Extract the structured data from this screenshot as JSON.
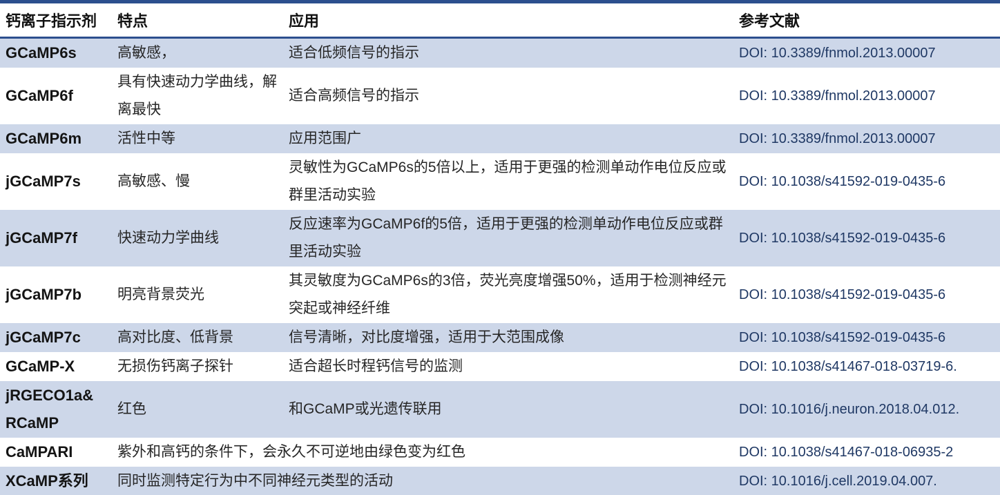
{
  "table": {
    "headers": [
      "钙离子指示剂",
      "特点",
      "应用",
      "参考文献"
    ],
    "rows": [
      {
        "indicator": "GCaMP6s",
        "features": "高敏感，",
        "application": "适合低频信号的指示",
        "reference": "DOI: 10.3389/fnmol.2013.00007",
        "shaded": true,
        "merged": false
      },
      {
        "indicator": "GCaMP6f",
        "features": "具有快速动力学曲线，解离最快",
        "application": "适合高频信号的指示",
        "reference": "DOI: 10.3389/fnmol.2013.00007",
        "shaded": false,
        "merged": false
      },
      {
        "indicator": "GCaMP6m",
        "features": "活性中等",
        "application": "应用范围广",
        "reference": "DOI: 10.3389/fnmol.2013.00007",
        "shaded": true,
        "merged": false
      },
      {
        "indicator": "jGCaMP7s",
        "features": "高敏感、慢",
        "application": "灵敏性为GCaMP6s的5倍以上，适用于更强的检测单动作电位反应或群里活动实验",
        "reference": "DOI: 10.1038/s41592-019-0435-6",
        "shaded": false,
        "merged": false
      },
      {
        "indicator": "jGCaMP7f",
        "features": "快速动力学曲线",
        "application": "反应速率为GCaMP6f的5倍，适用于更强的检测单动作电位反应或群里活动实验",
        "reference": "DOI: 10.1038/s41592-019-0435-6",
        "shaded": true,
        "merged": false
      },
      {
        "indicator": "jGCaMP7b",
        "features": "明亮背景荧光",
        "application": "其灵敏度为GCaMP6s的3倍，荧光亮度增强50%，适用于检测神经元突起或神经纤维",
        "reference": "DOI: 10.1038/s41592-019-0435-6",
        "shaded": false,
        "merged": false
      },
      {
        "indicator": "jGCaMP7c",
        "features": "高对比度、低背景",
        "application": "信号清晰，对比度增强，适用于大范围成像",
        "reference": "DOI: 10.1038/s41592-019-0435-6",
        "shaded": true,
        "merged": false
      },
      {
        "indicator": "GCaMP-X",
        "features": "无损伤钙离子探针",
        "application": "适合超长时程钙信号的监测",
        "reference": "DOI: 10.1038/s41467-018-03719-6.",
        "shaded": false,
        "merged": false
      },
      {
        "indicator": "jRGECO1a&RCaMP",
        "features": "红色",
        "application": "和GCaMP或光遗传联用",
        "reference": "DOI: 10.1016/j.neuron.2018.04.012.",
        "shaded": true,
        "merged": false
      },
      {
        "indicator": "CaMPARI",
        "features": "紫外和高钙的条件下，会永久不可逆地由绿色变为红色",
        "application": "",
        "reference": "DOI: 10.1038/s41467-018-06935-2",
        "shaded": false,
        "merged": true
      },
      {
        "indicator": "XCaMP系列",
        "features": "同时监测特定行为中不同神经元类型的活动",
        "application": "",
        "reference": "DOI: 10.1016/j.cell.2019.04.007.",
        "shaded": true,
        "merged": true
      }
    ]
  },
  "colors": {
    "accent_border": "#2c4f8e",
    "row_shade": "#cdd7e9",
    "doi_text": "#1f3864",
    "body_text": "#262626"
  }
}
